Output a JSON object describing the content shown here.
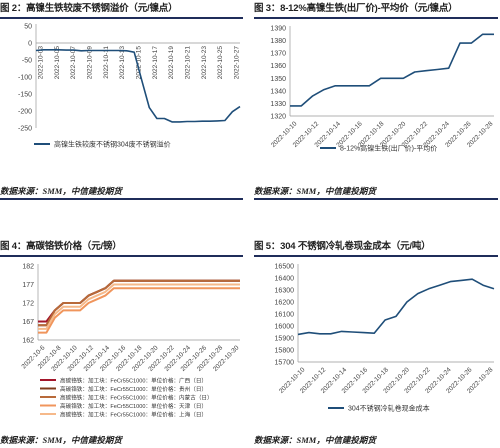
{
  "panels": [
    {
      "title": "图 2：高镍生铁较废不锈钢溢价（元/镍点）",
      "source": "数据来源：SMM，中信建投期货"
    },
    {
      "title": "图 3：8-12%高镍生铁(出厂价)-平均价（元/镍点）",
      "source": "数据来源：SMM，中信建投期货"
    },
    {
      "title": "图 4：高碳铬铁价格（元/镑）",
      "source": "数据来源：SMM，中信建投期货"
    },
    {
      "title": "图 5：304 不锈钢冷轧卷现金成本（元/吨）",
      "source": "数据来源：SMM，中信建投期货"
    }
  ],
  "colors": {
    "navy": "#1f4e79",
    "rule": "#1f2d5a",
    "series_red": "#a3162b",
    "series_darkbrown": "#7f3b1c",
    "series_brown": "#b86a3a",
    "series_orange": "#f0955c",
    "series_peach": "#f6b98a"
  },
  "chart_data": [
    {
      "type": "line",
      "title": "",
      "x_tick_labels": [
        "2022-10-03",
        "2022-10-05",
        "2022-10-07",
        "2022-10-09",
        "2022-10-11",
        "2022-10-13",
        "2022-10-15",
        "2022-10-17",
        "2022-10-19",
        "2022-10-21",
        "2022-10-23",
        "2022-10-25",
        "2022-10-27"
      ],
      "y_ticks": [
        "50",
        "0",
        "-50",
        "-100",
        "-150",
        "-200",
        "-250"
      ],
      "ylim": [
        -250,
        50
      ],
      "x_index_range": [
        0,
        27
      ],
      "series": [
        {
          "name": "高镍生铁较废不锈钢304废不锈钢溢价",
          "x": [
            0,
            1,
            2,
            3,
            4,
            5,
            6,
            7,
            8,
            9,
            10,
            11,
            12,
            13,
            14,
            15,
            16,
            17,
            18,
            19,
            20,
            21,
            22,
            23,
            24,
            25,
            26,
            27
          ],
          "values": [
            -22,
            -20,
            -20,
            -20,
            -21,
            -21,
            -23,
            -22,
            -22,
            -22,
            -22,
            -22,
            -23,
            -27,
            -110,
            -190,
            -222,
            -222,
            -232,
            -232,
            -231,
            -231,
            -230,
            -230,
            -229,
            -228,
            -202,
            -187
          ]
        }
      ],
      "legend": "bottom"
    },
    {
      "type": "line",
      "title": "",
      "x_tick_labels": [
        "2022-10-10",
        "2022-10-12",
        "2022-10-14",
        "2022-10-16",
        "2022-10-18",
        "2022-10-20",
        "2022-10-22",
        "2022-10-24",
        "2022-10-26",
        "2022-10-28"
      ],
      "y_ticks": [
        "1390",
        "1380",
        "1370",
        "1360",
        "1350",
        "1340",
        "1330",
        "1320"
      ],
      "ylim": [
        1320,
        1390
      ],
      "x_index_range": [
        0,
        18
      ],
      "series": [
        {
          "name": "8-12%高镍生铁(出厂价)-平均价",
          "x": [
            0,
            1,
            2,
            3,
            4,
            5,
            6,
            7,
            8,
            9,
            10,
            11,
            12,
            13,
            14,
            15,
            16,
            17,
            18
          ],
          "values": [
            1328,
            1328,
            1336,
            1341,
            1344,
            1344,
            1344,
            1344,
            1350,
            1350,
            1350,
            1355,
            1356,
            1357,
            1358,
            1378,
            1378,
            1385,
            1385
          ]
        }
      ],
      "legend": "bottom"
    },
    {
      "type": "line",
      "title": "",
      "x_tick_labels": [
        "2022-10-6",
        "2022-10-8",
        "2022-10-10",
        "2022-10-12",
        "2022-10-14",
        "2022-10-16",
        "2022-10-18",
        "2022-10-20",
        "2022-10-22",
        "2022-10-24",
        "2022-10-26",
        "2022-10-28",
        "2022-10-30"
      ],
      "y_ticks": [
        "182",
        "177",
        "172",
        "167",
        "162"
      ],
      "ylim": [
        162,
        182
      ],
      "x_index_range": [
        0,
        24
      ],
      "series": [
        {
          "name": "高碳铬铁：加工块：FeCr55C1000：单位价格：广西（日）",
          "color_key": "series_red",
          "x": [
            0,
            1,
            2,
            3,
            4,
            5,
            6,
            7,
            8,
            9,
            10,
            11,
            12,
            13,
            14,
            15,
            16,
            17,
            18,
            19,
            20,
            21,
            22,
            23,
            24
          ],
          "values": [
            167,
            167,
            170,
            172,
            172,
            172,
            174,
            175,
            176,
            178,
            178,
            178,
            178,
            178,
            178,
            178,
            178,
            178,
            178,
            178,
            178,
            178,
            178,
            178,
            178
          ]
        },
        {
          "name": "高碳铬铁：加工块：FeCr55C1000：单位价格：贵州（日）",
          "color_key": "series_darkbrown",
          "x": [
            0,
            1,
            2,
            3,
            4,
            5,
            6,
            7,
            8,
            9,
            10,
            11,
            12,
            13,
            14,
            15,
            16,
            17,
            18,
            19,
            20,
            21,
            22,
            23,
            24
          ],
          "values": [
            166,
            166,
            170,
            172,
            172,
            172,
            174,
            175,
            176,
            178,
            178,
            178,
            178,
            178,
            178,
            178,
            178,
            178,
            178,
            178,
            178,
            178,
            178,
            178,
            178
          ]
        },
        {
          "name": "高碳铬铁：加工块：FeCr55C1000：单位价格：内蒙古（日）",
          "color_key": "series_brown",
          "x": [
            0,
            1,
            2,
            3,
            4,
            5,
            6,
            7,
            8,
            9,
            10,
            11,
            12,
            13,
            14,
            15,
            16,
            17,
            18,
            19,
            20,
            21,
            22,
            23,
            24
          ],
          "values": [
            166,
            166,
            170,
            172,
            172,
            172,
            174,
            175,
            176,
            178,
            178,
            178,
            178,
            178,
            178,
            178,
            178,
            178,
            178,
            178,
            178,
            178,
            178,
            178,
            178
          ]
        },
        {
          "name": "高碳铬铁：加工块：FeCr55C1000：单位价格：天津（日）",
          "color_key": "series_orange",
          "x": [
            0,
            1,
            2,
            3,
            4,
            5,
            6,
            7,
            8,
            9,
            10,
            11,
            12,
            13,
            14,
            15,
            16,
            17,
            18,
            19,
            20,
            21,
            22,
            23,
            24
          ],
          "values": [
            164,
            164,
            168,
            170,
            170,
            170,
            172,
            173,
            174,
            176,
            176,
            176,
            176,
            176,
            176,
            176,
            176,
            176,
            176,
            176,
            176,
            176,
            176,
            176,
            176
          ]
        },
        {
          "name": "高碳铬铁：加工块：FeCr55C1000：单位价格：上海（日）",
          "color_key": "series_peach",
          "x": [
            0,
            1,
            2,
            3,
            4,
            5,
            6,
            7,
            8,
            9,
            10,
            11,
            12,
            13,
            14,
            15,
            16,
            17,
            18,
            19,
            20,
            21,
            22,
            23,
            24
          ],
          "values": [
            165,
            165,
            169,
            171,
            171,
            171,
            173,
            174,
            175,
            177,
            177,
            177,
            177,
            177,
            177,
            177,
            177,
            177,
            177,
            177,
            177,
            177,
            177,
            177,
            177
          ]
        }
      ],
      "legend": "bottom"
    },
    {
      "type": "line",
      "title": "",
      "x_tick_labels": [
        "2022-10-10",
        "2022-10-12",
        "2022-10-14",
        "2022-10-16",
        "2022-10-18",
        "2022-10-20",
        "2022-10-22",
        "2022-10-24",
        "2022-10-26",
        "2022-10-28"
      ],
      "y_ticks": [
        "16500",
        "16400",
        "16300",
        "16200",
        "16100",
        "16000",
        "15900",
        "15800",
        "15700"
      ],
      "ylim": [
        15700,
        16500
      ],
      "x_index_range": [
        0,
        18
      ],
      "series": [
        {
          "name": "304不锈钢冷轧卷现金成本",
          "x": [
            0,
            1,
            2,
            3,
            4,
            5,
            6,
            7,
            8,
            9,
            10,
            11,
            12,
            13,
            14,
            15,
            16,
            17,
            18
          ],
          "values": [
            15930,
            15945,
            15935,
            15935,
            15955,
            15950,
            15945,
            15940,
            16050,
            16080,
            16200,
            16270,
            16310,
            16340,
            16370,
            16380,
            16390,
            16340,
            16310
          ]
        }
      ],
      "legend": "bottom"
    }
  ]
}
